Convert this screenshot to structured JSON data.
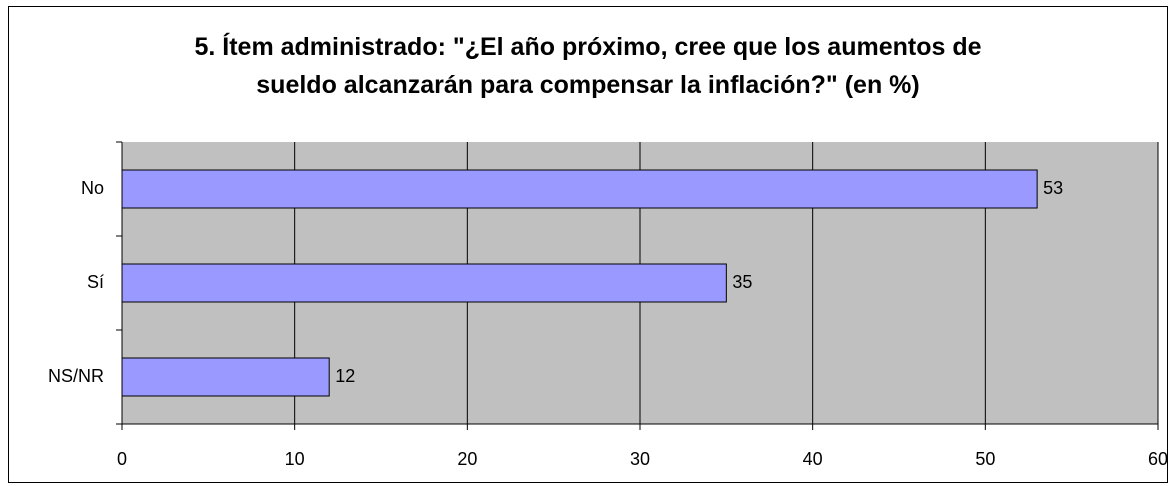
{
  "chart_data": {
    "type": "bar",
    "orientation": "horizontal",
    "title": "5. Ítem administrado: \"¿El año próximo, cree que los aumentos de\nsueldo alcanzarán para compensar la inflación?\" (en %)",
    "categories": [
      "No",
      "Sí",
      "NS/NR"
    ],
    "values": [
      53,
      35,
      12
    ],
    "color": "#9999ff",
    "xlim": [
      0,
      60
    ],
    "xticks": [
      0,
      10,
      20,
      30,
      40,
      50,
      60
    ],
    "grid": true,
    "data_labels": true
  }
}
